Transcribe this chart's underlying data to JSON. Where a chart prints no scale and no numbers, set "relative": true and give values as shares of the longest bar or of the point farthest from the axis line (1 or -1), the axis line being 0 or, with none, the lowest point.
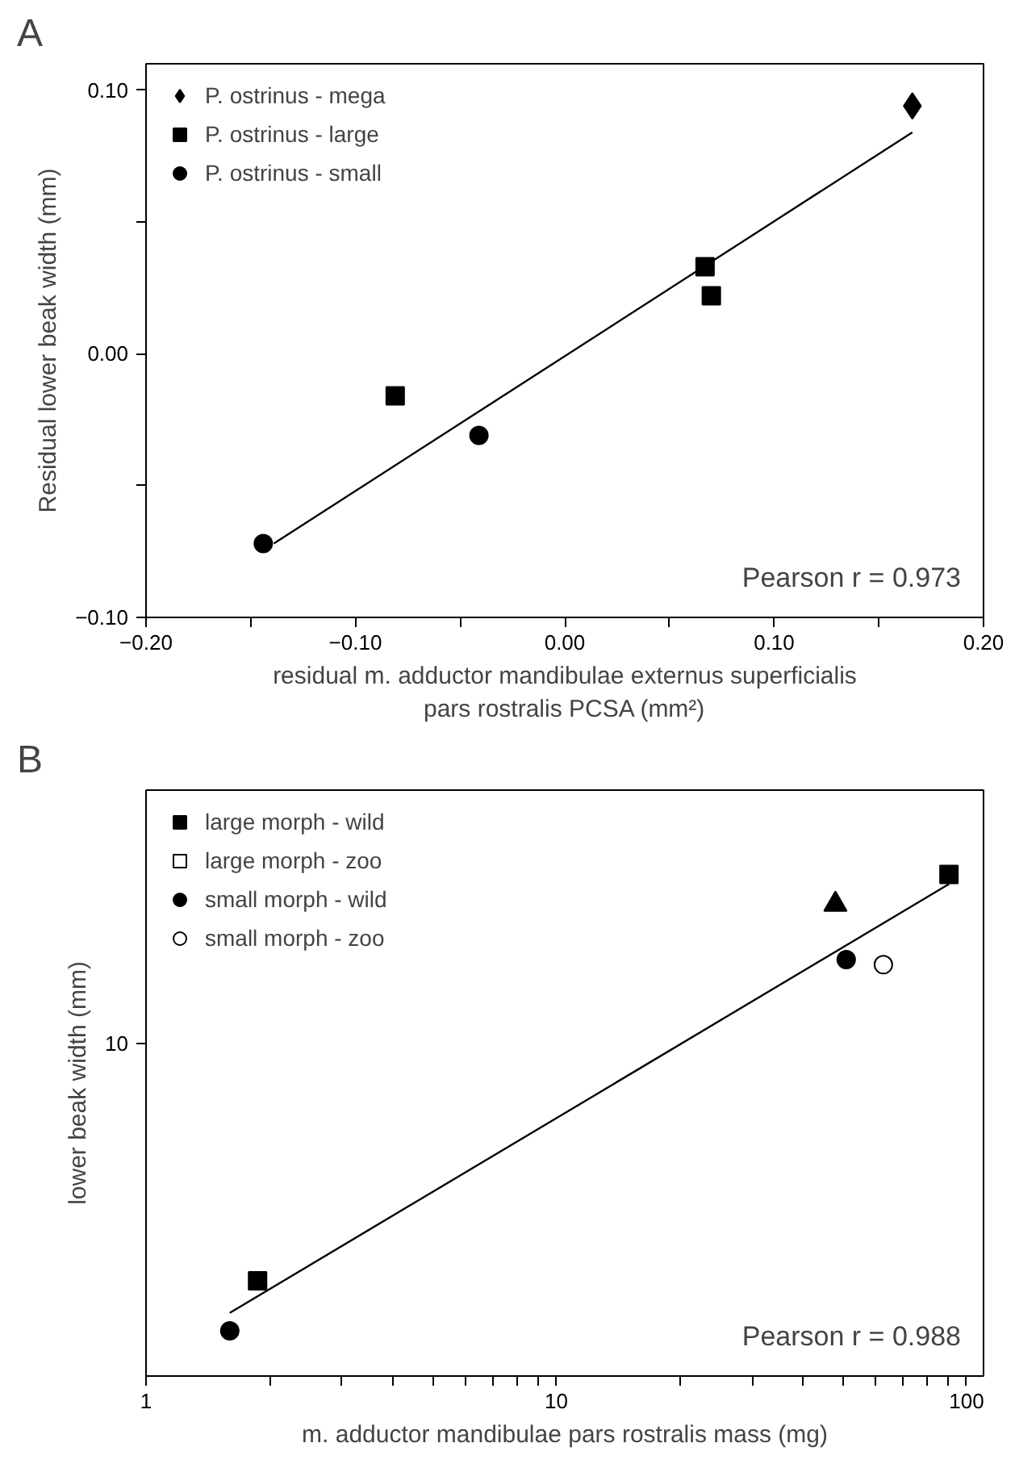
{
  "chart_data": [
    {
      "type": "scatter",
      "title": "A",
      "xlabel": "residual m. adductor mandibulae externus superficialis\npars rostralis PCSA (mm²)",
      "ylabel": "Residual lower beak width (mm)",
      "xlim": [
        -0.2,
        0.2
      ],
      "ylim": [
        -0.1,
        0.11
      ],
      "xticks": [
        {
          "value": -0.2,
          "label": "−0.20"
        },
        {
          "value": -0.15,
          "label": null
        },
        {
          "value": -0.1,
          "label": "−0.10"
        },
        {
          "value": -0.05,
          "label": null
        },
        {
          "value": 0,
          "label": "0.00"
        },
        {
          "value": 0.05,
          "label": null
        },
        {
          "value": 0.1,
          "label": "0.10"
        },
        {
          "value": 0.15,
          "label": null
        },
        {
          "value": 0.2,
          "label": "0.20"
        }
      ],
      "yticks": [
        {
          "value": -0.1,
          "label": "−0.10"
        },
        {
          "value": -0.05,
          "label": null
        },
        {
          "value": 0,
          "label": "0.00"
        },
        {
          "value": 0.05,
          "label": null
        },
        {
          "value": 0.1,
          "label": "0.10"
        }
      ],
      "grid": false,
      "legend": "top left",
      "annotations": [
        "Pearson r = 0.973"
      ],
      "series": [
        {
          "name": "P. ostrinus - mega",
          "color": "#000000",
          "marker": "diamond",
          "x": [
            0.166
          ],
          "values": [
            0.094
          ]
        },
        {
          "name": "P. ostrinus - large",
          "color": "#000000",
          "marker": "square",
          "x": [
            0.067,
            0.07,
            -0.081
          ],
          "values": [
            0.033,
            0.022,
            -0.016
          ]
        },
        {
          "name": "P. ostrinus - small",
          "color": "#000000",
          "marker": "circle",
          "x": [
            -0.041,
            -0.144
          ],
          "values": [
            -0.031,
            -0.072
          ]
        },
        {
          "type": "line",
          "color": "#000000",
          "x": [
            -0.139,
            0.166
          ],
          "values": [
            -0.072,
            0.084
          ]
        }
      ]
    },
    {
      "type": "scatter",
      "title": "B",
      "xlabel": "m. adductor mandibulae pars rostralis mass (mg)",
      "ylabel": "lower beak width (mm)",
      "log": "x",
      "relative": true,
      "xlim": [
        1,
        110
      ],
      "xticks": [
        1,
        {
          "value": 2,
          "label": null
        },
        {
          "value": 3,
          "label": null
        },
        {
          "value": 4,
          "label": null
        },
        {
          "value": 5,
          "label": null
        },
        {
          "value": 6,
          "label": null
        },
        {
          "value": 7,
          "label": null
        },
        {
          "value": 8,
          "label": null
        },
        {
          "value": 9,
          "label": null
        },
        10,
        {
          "value": 20,
          "label": null
        },
        {
          "value": 30,
          "label": null
        },
        {
          "value": 40,
          "label": null
        },
        {
          "value": 50,
          "label": null
        },
        {
          "value": 60,
          "label": null
        },
        {
          "value": 70,
          "label": null
        },
        {
          "value": 80,
          "label": null
        },
        {
          "value": 90,
          "label": null
        },
        100
      ],
      "grid": false,
      "legend": "top left",
      "annotations": [
        "Pearson r = 0.988",
        "10"
      ],
      "series": [
        {
          "name": "large morph - wild",
          "color": "#000000",
          "marker": "square",
          "x": [
            90.6,
            1.87
          ],
          "values": [
            1,
            0.19
          ]
        },
        {
          "name": "large morph - zoo",
          "color": "#ffffff",
          "marker": "square"
        },
        {
          "name": "small morph - wild",
          "color": "#000000",
          "marker": "circle",
          "x": [
            50.9,
            1.6
          ],
          "values": [
            0.83,
            0.09
          ]
        },
        {
          "name": "small morph - zoo",
          "color": "#ffffff",
          "marker": "circle",
          "x": [
            62.7
          ],
          "values": [
            0.82
          ]
        },
        {
          "color": "#000000",
          "marker": "triangle",
          "x": [
            47.9
          ],
          "values": [
            0.94
          ]
        },
        {
          "type": "line",
          "color": "#000000",
          "x": [
            1.6,
            90.7
          ],
          "values": [
            0.126,
            0.981
          ]
        }
      ]
    }
  ]
}
